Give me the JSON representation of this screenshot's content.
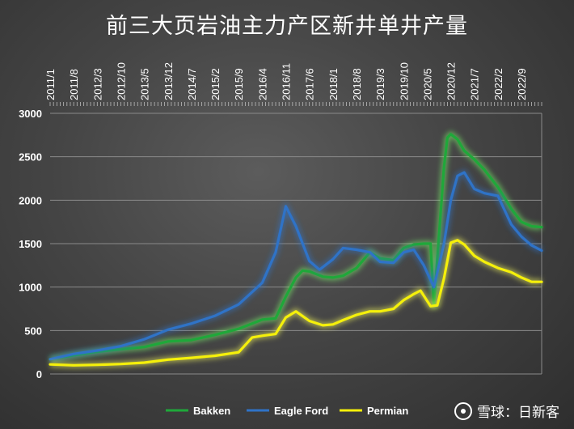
{
  "chart_data": {
    "type": "line",
    "title": "前三大页岩油主力产区新井单井产量",
    "xlabel": "",
    "ylabel": "",
    "ylim": [
      0,
      3000
    ],
    "yticks": [
      0,
      500,
      1000,
      1500,
      2000,
      2500,
      3000
    ],
    "grid": true,
    "legend": "bottom",
    "x_tick_labels": [
      "2011/1",
      "2011/8",
      "2012/3",
      "2012/10",
      "2013/5",
      "2013/12",
      "2014/7",
      "2015/2",
      "2015/9",
      "2016/4",
      "2016/11",
      "2017/6",
      "2018/1",
      "2018/8",
      "2019/3",
      "2019/10",
      "2020/5",
      "2020/12",
      "2021/7",
      "2022/2",
      "2022/9"
    ],
    "x_start": "2011/1",
    "x_end": "2023/3",
    "series": [
      {
        "name": "Bakken",
        "color": "#1fa83a",
        "glow": "#7dff6b",
        "points": [
          [
            "2011/1",
            170
          ],
          [
            "2011/8",
            215
          ],
          [
            "2012/3",
            255
          ],
          [
            "2012/10",
            285
          ],
          [
            "2013/5",
            310
          ],
          [
            "2013/12",
            375
          ],
          [
            "2014/7",
            390
          ],
          [
            "2015/2",
            450
          ],
          [
            "2015/9",
            520
          ],
          [
            "2016/4",
            625
          ],
          [
            "2016/8",
            640
          ],
          [
            "2016/11",
            890
          ],
          [
            "2017/2",
            1110
          ],
          [
            "2017/4",
            1190
          ],
          [
            "2017/6",
            1180
          ],
          [
            "2017/10",
            1120
          ],
          [
            "2018/1",
            1110
          ],
          [
            "2018/4",
            1130
          ],
          [
            "2018/8",
            1220
          ],
          [
            "2018/12",
            1400
          ],
          [
            "2019/3",
            1330
          ],
          [
            "2019/7",
            1310
          ],
          [
            "2019/10",
            1450
          ],
          [
            "2020/1",
            1490
          ],
          [
            "2020/4",
            1500
          ],
          [
            "2020/6",
            1500
          ],
          [
            "2020/7",
            790
          ],
          [
            "2020/10",
            2380
          ],
          [
            "2020/11",
            2720
          ],
          [
            "2020/12",
            2760
          ],
          [
            "2021/2",
            2700
          ],
          [
            "2021/4",
            2570
          ],
          [
            "2021/7",
            2470
          ],
          [
            "2021/10",
            2350
          ],
          [
            "2022/2",
            2150
          ],
          [
            "2022/6",
            1900
          ],
          [
            "2022/9",
            1750
          ],
          [
            "2022/12",
            1700
          ],
          [
            "2023/3",
            1690
          ]
        ]
      },
      {
        "name": "Eagle Ford",
        "color": "#2f73c7",
        "glow": "#2f73c7",
        "points": [
          [
            "2011/1",
            170
          ],
          [
            "2011/8",
            230
          ],
          [
            "2012/3",
            270
          ],
          [
            "2012/10",
            320
          ],
          [
            "2013/5",
            400
          ],
          [
            "2013/12",
            510
          ],
          [
            "2014/7",
            580
          ],
          [
            "2015/2",
            670
          ],
          [
            "2015/9",
            800
          ],
          [
            "2016/4",
            1050
          ],
          [
            "2016/8",
            1400
          ],
          [
            "2016/11",
            1930
          ],
          [
            "2017/2",
            1700
          ],
          [
            "2017/6",
            1300
          ],
          [
            "2017/9",
            1200
          ],
          [
            "2018/1",
            1320
          ],
          [
            "2018/4",
            1450
          ],
          [
            "2018/8",
            1430
          ],
          [
            "2018/12",
            1400
          ],
          [
            "2019/3",
            1290
          ],
          [
            "2019/7",
            1280
          ],
          [
            "2019/10",
            1400
          ],
          [
            "2020/1",
            1430
          ],
          [
            "2020/4",
            1250
          ],
          [
            "2020/7",
            1000
          ],
          [
            "2020/10",
            1500
          ],
          [
            "2020/12",
            2000
          ],
          [
            "2021/2",
            2280
          ],
          [
            "2021/4",
            2320
          ],
          [
            "2021/7",
            2130
          ],
          [
            "2021/10",
            2080
          ],
          [
            "2022/2",
            2050
          ],
          [
            "2022/6",
            1720
          ],
          [
            "2022/9",
            1580
          ],
          [
            "2022/12",
            1480
          ],
          [
            "2023/3",
            1420
          ]
        ]
      },
      {
        "name": "Permian",
        "color": "#f5f00a",
        "glow": "#fbff5a",
        "points": [
          [
            "2011/1",
            110
          ],
          [
            "2011/8",
            100
          ],
          [
            "2012/3",
            105
          ],
          [
            "2012/10",
            115
          ],
          [
            "2013/5",
            130
          ],
          [
            "2013/12",
            165
          ],
          [
            "2014/7",
            185
          ],
          [
            "2015/2",
            210
          ],
          [
            "2015/9",
            250
          ],
          [
            "2016/1",
            420
          ],
          [
            "2016/4",
            440
          ],
          [
            "2016/8",
            460
          ],
          [
            "2016/11",
            650
          ],
          [
            "2017/2",
            720
          ],
          [
            "2017/6",
            610
          ],
          [
            "2017/10",
            560
          ],
          [
            "2018/1",
            570
          ],
          [
            "2018/4",
            620
          ],
          [
            "2018/8",
            680
          ],
          [
            "2018/12",
            720
          ],
          [
            "2019/3",
            720
          ],
          [
            "2019/7",
            750
          ],
          [
            "2019/10",
            850
          ],
          [
            "2020/1",
            920
          ],
          [
            "2020/3",
            960
          ],
          [
            "2020/6",
            780
          ],
          [
            "2020/8",
            790
          ],
          [
            "2020/10",
            1100
          ],
          [
            "2020/12",
            1510
          ],
          [
            "2021/2",
            1540
          ],
          [
            "2021/4",
            1490
          ],
          [
            "2021/7",
            1360
          ],
          [
            "2021/10",
            1290
          ],
          [
            "2022/2",
            1220
          ],
          [
            "2022/6",
            1170
          ],
          [
            "2022/9",
            1110
          ],
          [
            "2022/12",
            1060
          ],
          [
            "2023/3",
            1060
          ]
        ]
      }
    ]
  },
  "watermark": {
    "text": "雪球：日新客"
  }
}
